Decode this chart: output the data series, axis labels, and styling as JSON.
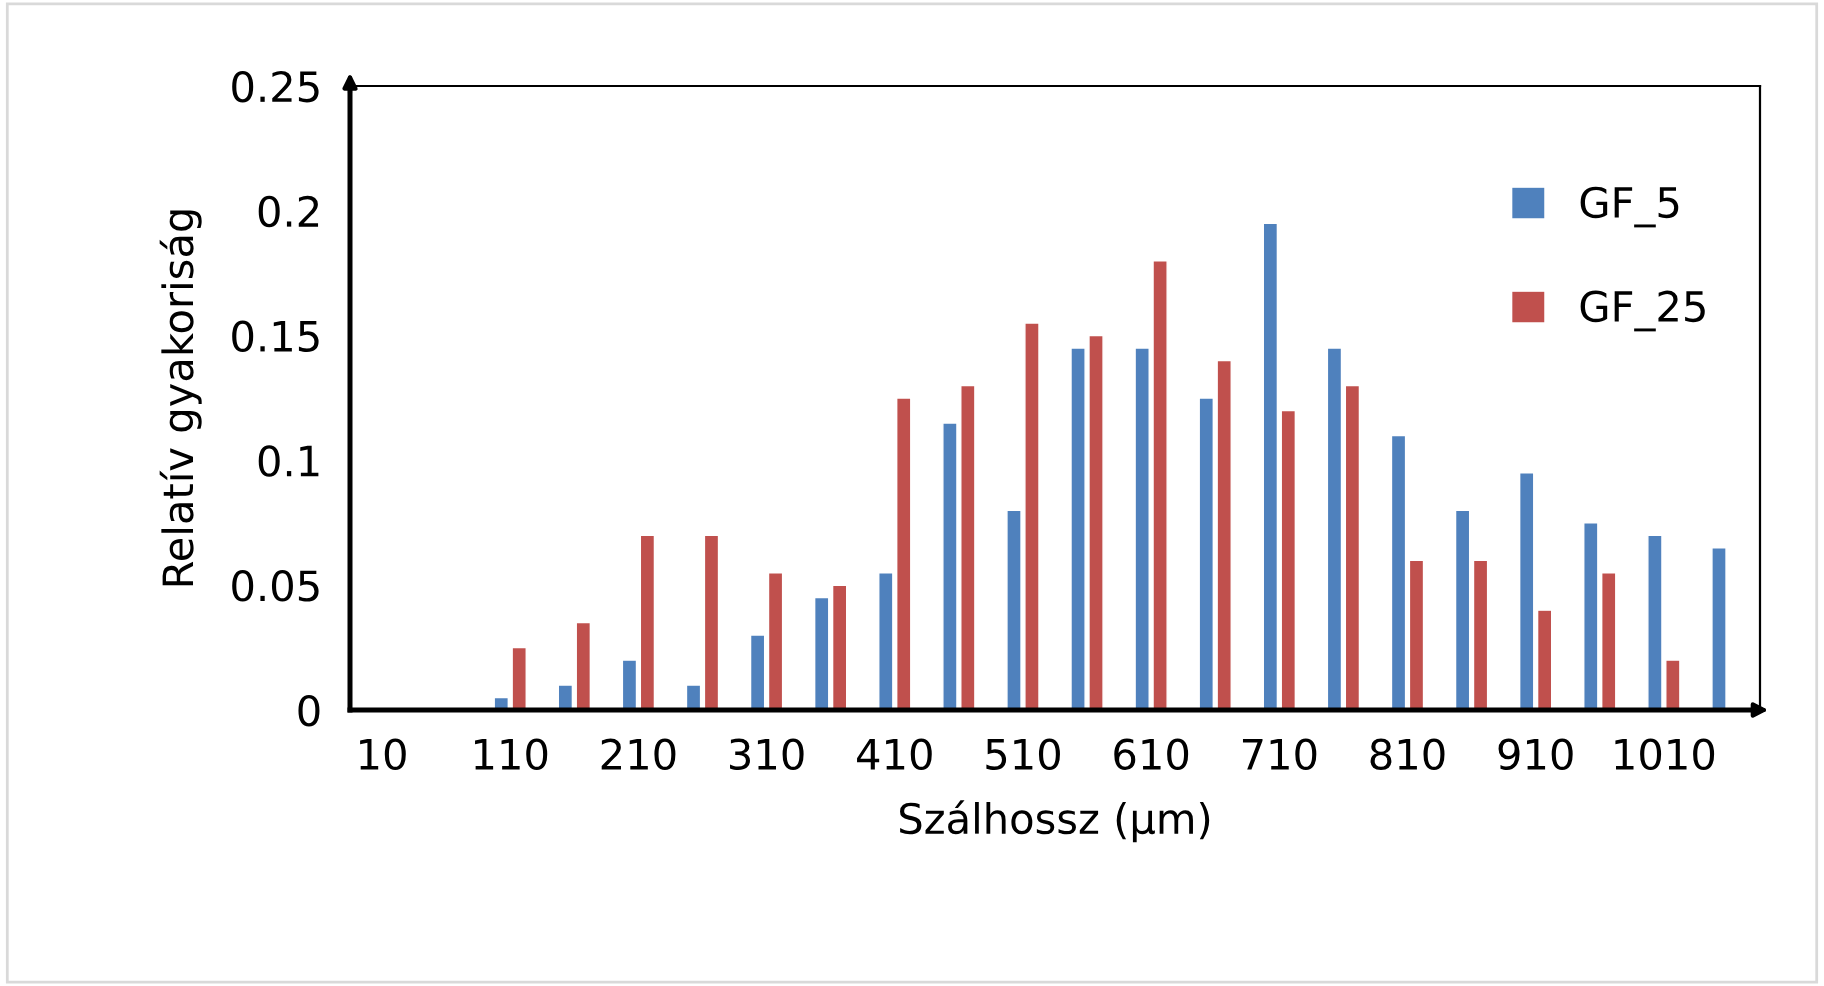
{
  "chart_data": {
    "type": "bar",
    "xlabel": "Szálhossz (µm)",
    "ylabel": "Relatív gyakoriság",
    "categories": [
      "10",
      null,
      "110",
      null,
      "210",
      null,
      "310",
      null,
      "410",
      null,
      "510",
      null,
      "610",
      null,
      "710",
      null,
      "810",
      null,
      "910",
      null,
      "1010",
      null
    ],
    "series": [
      {
        "name": "GF_5",
        "color": "#4f81bd",
        "values": [
          null,
          null,
          0.005,
          0.01,
          0.02,
          0.01,
          0.03,
          0.045,
          0.055,
          0.115,
          0.08,
          0.145,
          0.145,
          0.125,
          0.195,
          0.145,
          0.11,
          0.08,
          0.095,
          0.075,
          0.07,
          0.065
        ]
      },
      {
        "name": "GF_25",
        "color": "#c0504d",
        "values": [
          null,
          null,
          0.025,
          0.035,
          0.07,
          0.07,
          0.055,
          0.05,
          0.125,
          0.13,
          0.155,
          0.15,
          0.18,
          0.14,
          0.12,
          0.13,
          0.06,
          0.06,
          0.04,
          0.055,
          0.02,
          null
        ]
      }
    ],
    "ylim": [
      0,
      0.25
    ],
    "yticks": [
      0,
      {
        "value": 0.05,
        "label": "0.05"
      },
      {
        "value": 0.1,
        "label": "0.1"
      },
      {
        "value": 0.15,
        "label": "0.15"
      },
      {
        "value": 0.2,
        "label": "0.2"
      },
      {
        "value": 0.25,
        "label": "0.25"
      }
    ],
    "grid": false,
    "legend": "top right"
  }
}
